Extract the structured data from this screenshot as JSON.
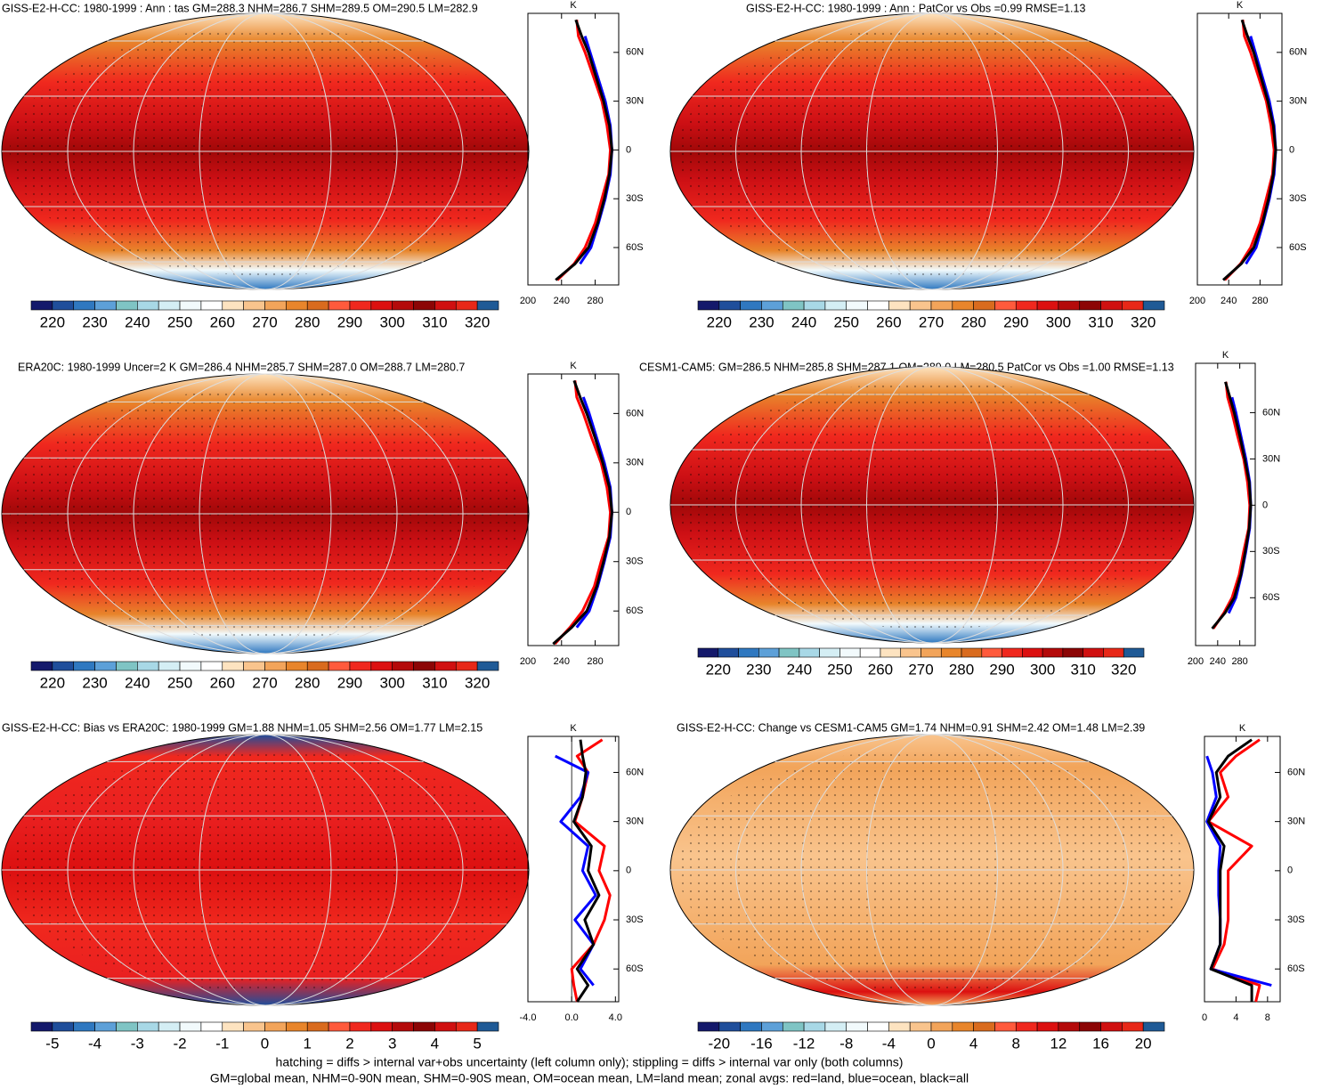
{
  "palette": [
    "#14196b",
    "#1f4e9b",
    "#2f78c0",
    "#5da0d8",
    "#7fc4c4",
    "#a8d8e6",
    "#d4eef4",
    "#f2fafc",
    "#ffffff",
    "#fde3c0",
    "#f9c48d",
    "#f2a45a",
    "#e8852b",
    "#d96b1e",
    "#ff5a3c",
    "#f0281e",
    "#dc1010",
    "#b40a0a",
    "#8c0505",
    "#d01010",
    "#e82818",
    "#1f5a96"
  ],
  "lat": [
    80,
    70,
    60,
    45,
    30,
    15,
    0,
    -15,
    -30,
    -45,
    -60,
    -70,
    -80
  ],
  "panels": [
    {
      "title": "GISS-E2-H-CC: 1980-1999 : Ann : tas GM=288.3 NHM=286.7 SHM=289.5 OM=290.5 LM=282.9",
      "colorbar": {
        "lim": [
          215,
          325
        ],
        "ticks": [
          220,
          230,
          240,
          250,
          260,
          270,
          280,
          290,
          300,
          310,
          320
        ]
      },
      "zonal": {
        "xlabel": "K",
        "xlim": [
          200,
          308
        ],
        "xticks": [
          200,
          240,
          280
        ],
        "ylim": [
          -83,
          84
        ],
        "yticks": [
          {
            "value": 60,
            "label": "60N"
          },
          {
            "value": 30,
            "label": "30N"
          },
          0,
          {
            "value": -30,
            "label": "30S"
          },
          {
            "value": -60,
            "label": "60S"
          }
        ],
        "series": [
          {
            "color": "#ff0000",
            "values": [
              258,
              260,
              268,
              278,
              288,
              294,
              298,
              296,
              288,
              280,
              268,
              255,
              235
            ]
          },
          {
            "color": "#0000ff",
            "values": [
              null,
              268,
              274,
              283,
              292,
              298,
              300,
              298,
              292,
              284,
              275,
              262,
              null
            ]
          },
          {
            "color": "#000000",
            "values": [
              257,
              264,
              272,
              281,
              290,
              297,
              300,
              297,
              291,
              283,
              272,
              256,
              233
            ]
          }
        ]
      }
    },
    {
      "title": "GISS-E2-H-CC: 1980-1999 : Ann : PatCor vs Obs =0.99 RMSE=1.13",
      "colorbar": {
        "lim": [
          215,
          325
        ],
        "ticks": [
          220,
          230,
          240,
          250,
          260,
          270,
          280,
          290,
          300,
          310,
          320
        ]
      },
      "zonal": {
        "xlabel": "K",
        "xlim": [
          200,
          308
        ],
        "xticks": [
          200,
          240,
          280
        ],
        "ylim": [
          -83,
          84
        ],
        "yticks": [
          {
            "value": 60,
            "label": "60N"
          },
          {
            "value": 30,
            "label": "30N"
          },
          0,
          {
            "value": -30,
            "label": "30S"
          },
          {
            "value": -60,
            "label": "60S"
          }
        ],
        "series": [
          {
            "color": "#ff0000",
            "values": [
              258,
              260,
              268,
              278,
              288,
              294,
              298,
              296,
              288,
              280,
              268,
              255,
              235
            ]
          },
          {
            "color": "#0000ff",
            "values": [
              null,
              268,
              274,
              283,
              292,
              298,
              300,
              298,
              292,
              284,
              275,
              262,
              null
            ]
          },
          {
            "color": "#000000",
            "values": [
              257,
              264,
              272,
              281,
              290,
              297,
              300,
              297,
              291,
              283,
              272,
              256,
              233
            ]
          }
        ]
      }
    },
    {
      "title": "ERA20C: 1980-1999 Uncer=2 K GM=286.4 NHM=285.7 SHM=287.0 OM=288.7 LM=280.7",
      "colorbar": {
        "lim": [
          215,
          325
        ],
        "ticks": [
          220,
          230,
          240,
          250,
          260,
          270,
          280,
          290,
          300,
          310,
          320
        ]
      },
      "zonal": {
        "xlabel": "K",
        "xlim": [
          200,
          308
        ],
        "xticks": [
          200,
          240,
          280
        ],
        "ylim": [
          -81,
          84
        ],
        "yticks": [
          {
            "value": 60,
            "label": "60N"
          },
          {
            "value": 30,
            "label": "30N"
          },
          0,
          {
            "value": -30,
            "label": "30S"
          },
          {
            "value": -60,
            "label": "60S"
          }
        ],
        "series": [
          {
            "color": "#ff0000",
            "values": [
              256,
              258,
              266,
              276,
              287,
              294,
              298,
              296,
              287,
              279,
              265,
              250,
              232
            ]
          },
          {
            "color": "#0000ff",
            "values": [
              null,
              266,
              273,
              282,
              291,
              298,
              300,
              298,
              291,
              283,
              273,
              258,
              null
            ]
          },
          {
            "color": "#000000",
            "values": [
              255,
              262,
              270,
              280,
              289,
              297,
              300,
              297,
              290,
              282,
              270,
              252,
              230
            ]
          }
        ]
      }
    },
    {
      "title": "CESM1-CAM5: GM=286.5 NHM=285.8 SHM=287.1 OM=289.0 LM=280.5 PatCor vs Obs =1.00 RMSE=1.13",
      "colorbar": {
        "lim": [
          215,
          325
        ],
        "ticks": [
          220,
          230,
          240,
          250,
          260,
          270,
          280,
          290,
          300,
          310,
          320
        ]
      },
      "zonal": {
        "xlabel": "K",
        "xlim": [
          200,
          308
        ],
        "xticks": [
          200,
          240,
          280
        ],
        "ylim": [
          -91,
          92
        ],
        "yticks": [
          {
            "value": 60,
            "label": "60N"
          },
          {
            "value": 30,
            "label": "30N"
          },
          0,
          {
            "value": -30,
            "label": "30S"
          },
          {
            "value": -60,
            "label": "60S"
          }
        ],
        "series": [
          {
            "color": "#ff0000",
            "values": [
              255,
              258,
              266,
              276,
              287,
              294,
              298,
              296,
              287,
              279,
              266,
              251,
              232
            ]
          },
          {
            "color": "#0000ff",
            "values": [
              null,
              266,
              273,
              282,
              291,
              298,
              300,
              298,
              291,
              283,
              273,
              260,
              null
            ]
          },
          {
            "color": "#000000",
            "values": [
              254,
              262,
              270,
              280,
              289,
              297,
              300,
              297,
              290,
              282,
              270,
              253,
              230
            ]
          }
        ]
      }
    },
    {
      "title": "GISS-E2-H-CC: Bias vs ERA20C: 1980-1999 GM=1.88 NHM=1.05 SHM=2.56 OM=1.77 LM=2.15",
      "colorbar": {
        "lim": [
          -5.5,
          5.5
        ],
        "ticks": [
          -5,
          -4,
          -3,
          -2,
          -1,
          0,
          1,
          2,
          3,
          4,
          5
        ]
      },
      "zonal": {
        "xlabel": "K",
        "xlim": [
          -4,
          4.3
        ],
        "xticks": [
          {
            "value": -4,
            "label": "-4.0"
          },
          {
            "value": 0,
            "label": "0.0"
          },
          {
            "value": 4,
            "label": "4.0"
          }
        ],
        "ylim": [
          -80,
          82
        ],
        "yticks": [
          {
            "value": 60,
            "label": "60N"
          },
          {
            "value": 30,
            "label": "30N"
          },
          0,
          {
            "value": -30,
            "label": "30S"
          },
          {
            "value": -60,
            "label": "60S"
          }
        ],
        "series": [
          {
            "color": "#ff0000",
            "values": [
              2.8,
              0.5,
              1.5,
              1.0,
              0.3,
              3.0,
              2.5,
              3.5,
              3.0,
              2.0,
              0.0,
              0.2,
              0.5
            ]
          },
          {
            "color": "#0000ff",
            "values": [
              null,
              -1.5,
              1.5,
              0.8,
              -1.0,
              1.5,
              1.0,
              2.2,
              0.3,
              2.0,
              0.8,
              2.0,
              null
            ]
          },
          {
            "color": "#000000",
            "values": [
              0.8,
              1.0,
              1.3,
              1.0,
              0.2,
              1.8,
              1.5,
              2.5,
              1.2,
              2.0,
              0.5,
              1.5,
              0.5
            ]
          }
        ]
      }
    },
    {
      "title": "GISS-E2-H-CC: Change vs CESM1-CAM5 GM=1.74 NHM=0.91 SHM=2.42 OM=1.48 LM=2.39",
      "colorbar": {
        "lim": [
          -22,
          22
        ],
        "ticks": [
          -20,
          -16,
          -12,
          -8,
          -4,
          0,
          4,
          8,
          12,
          16,
          20
        ]
      },
      "zonal": {
        "xlabel": "K",
        "xlim": [
          0,
          9.6
        ],
        "xticks": [
          0,
          4,
          8
        ],
        "ylim": [
          -80,
          82
        ],
        "yticks": [
          {
            "value": 60,
            "label": "60N"
          },
          {
            "value": 30,
            "label": "30N"
          },
          0,
          {
            "value": -30,
            "label": "30S"
          },
          {
            "value": -60,
            "label": "60S"
          }
        ],
        "series": [
          {
            "color": "#ff0000",
            "values": [
              7,
              4,
              2,
              3,
              0.5,
              6,
              3,
              3,
              3,
              2.5,
              1,
              7,
              6.5
            ]
          },
          {
            "color": "#0000ff",
            "values": [
              null,
              0.3,
              1,
              1.5,
              0.3,
              2,
              1.8,
              1.8,
              2,
              2,
              0.8,
              8.5,
              null
            ]
          },
          {
            "color": "#000000",
            "values": [
              6,
              3,
              1.5,
              2,
              0.5,
              2.5,
              2,
              2,
              2,
              2,
              0.8,
              6,
              6
            ]
          }
        ]
      }
    }
  ],
  "footer": [
    "hatching = diffs > internal var+obs uncertainty (left column only); stippling = diffs > internal var only (both columns)",
    "GM=global mean, NHM=0-90N mean, SHM=0-90S mean, OM=ocean mean, LM=land mean; zonal avgs: red=land, blue=ocean, black=all"
  ]
}
